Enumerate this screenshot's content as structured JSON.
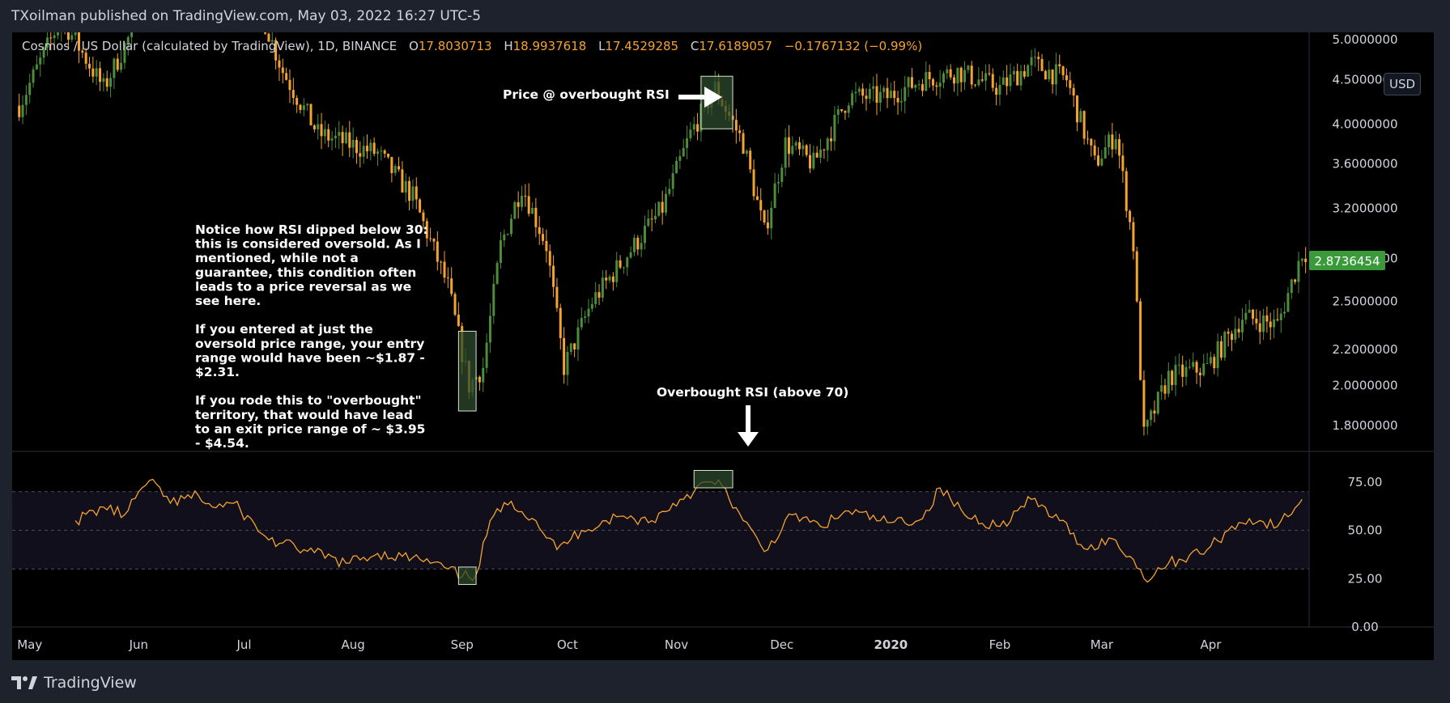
{
  "header": {
    "published_line": "TXoilman published on TradingView.com, May 03, 2022 16:27 UTC-5"
  },
  "footer": {
    "logo_text": "TradingView"
  },
  "legend": {
    "symbol": "Cosmos / US Dollar (calculated by TradingView), 1D, BINANCE",
    "o_label": "O",
    "o_value": "17.8030713",
    "h_label": "H",
    "h_value": "18.9937618",
    "l_label": "L",
    "l_value": "17.4529285",
    "c_label": "C",
    "c_value": "17.6189057",
    "change": "−0.1767132 (−0.99%)"
  },
  "currency_button": "USD",
  "last_price_label": "2.8736454",
  "colors": {
    "up": "#4c8c3a",
    "down": "#f5a32f",
    "rsi_line": "#f5a32f",
    "background": "#000000",
    "frame": "#1e222d",
    "last_price_badge": "#3a9a3a",
    "rsi_band": "#120f1c",
    "highlight_fill": "#2c4a2c"
  },
  "annotations": {
    "price_overbought": "Price @ overbought RSI",
    "rsi_overbought": "Overbought RSI (above 70)",
    "note_lines": [
      "Notice how RSI dipped below 30:",
      "this is considered oversold. As I",
      "mentioned, while not a",
      "guarantee, this condition often",
      "leads to a price reversal as we",
      "see here.",
      "",
      "If you entered at just the",
      "oversold price range, your entry",
      "range would have been ~$1.87 -",
      "$2.31.",
      "",
      "If you rode this to \"overbought\"",
      "territory, that would have lead",
      "to an exit price range of ~ $3.95",
      "- $4.54."
    ]
  },
  "chart_data": [
    {
      "type": "candlestick",
      "title": "Cosmos / US Dollar (calculated by TradingView), 1D, BINANCE",
      "y_scale": "log",
      "ylim": [
        1.68,
        5.1
      ],
      "y_ticks": [
        5.0,
        4.5,
        4.0,
        3.6,
        3.2,
        2.8,
        2.5,
        2.2,
        2.0,
        1.8
      ],
      "y_tick_labels": [
        "5.0000000",
        "4.5000000",
        "4.0000000",
        "3.6000000",
        "3.2000000",
        "2.8000000",
        "2.5000000",
        "2.2000000",
        "2.0000000",
        "1.8000000"
      ],
      "x_range": [
        "2019-04-26",
        "2020-04-29"
      ],
      "x_ticks": [
        {
          "date": "2019-05-01",
          "label": "May"
        },
        {
          "date": "2019-06-01",
          "label": "Jun"
        },
        {
          "date": "2019-07-01",
          "label": "Jul"
        },
        {
          "date": "2019-08-01",
          "label": "Aug"
        },
        {
          "date": "2019-09-01",
          "label": "Sep"
        },
        {
          "date": "2019-10-01",
          "label": "Oct"
        },
        {
          "date": "2019-11-01",
          "label": "Nov"
        },
        {
          "date": "2019-12-01",
          "label": "Dec"
        },
        {
          "date": "2020-01-01",
          "label": "2020"
        },
        {
          "date": "2020-02-01",
          "label": "Feb"
        },
        {
          "date": "2020-03-01",
          "label": "Mar"
        },
        {
          "date": "2020-04-01",
          "label": "Apr"
        }
      ],
      "close_path": [
        {
          "date": "2019-04-28",
          "close": 4.2
        },
        {
          "date": "2019-05-10",
          "close": 5.3
        },
        {
          "date": "2019-05-22",
          "close": 4.4
        },
        {
          "date": "2019-06-05",
          "close": 5.7
        },
        {
          "date": "2019-06-20",
          "close": 5.6
        },
        {
          "date": "2019-07-05",
          "close": 5.5
        },
        {
          "date": "2019-07-12",
          "close": 4.6
        },
        {
          "date": "2019-07-22",
          "close": 3.9
        },
        {
          "date": "2019-08-08",
          "close": 3.7
        },
        {
          "date": "2019-08-18",
          "close": 3.3
        },
        {
          "date": "2019-08-28",
          "close": 2.6
        },
        {
          "date": "2019-09-03",
          "close": 2.0
        },
        {
          "date": "2019-09-07",
          "close": 2.1
        },
        {
          "date": "2019-09-12",
          "close": 2.9
        },
        {
          "date": "2019-09-18",
          "close": 3.4
        },
        {
          "date": "2019-09-25",
          "close": 2.9
        },
        {
          "date": "2019-09-30",
          "close": 2.1
        },
        {
          "date": "2019-10-08",
          "close": 2.5
        },
        {
          "date": "2019-10-20",
          "close": 2.9
        },
        {
          "date": "2019-10-28",
          "close": 3.2
        },
        {
          "date": "2019-11-05",
          "close": 3.9
        },
        {
          "date": "2019-11-12",
          "close": 4.4
        },
        {
          "date": "2019-11-20",
          "close": 3.8
        },
        {
          "date": "2019-11-26",
          "close": 3.0
        },
        {
          "date": "2019-12-02",
          "close": 3.8
        },
        {
          "date": "2019-12-10",
          "close": 3.6
        },
        {
          "date": "2019-12-20",
          "close": 4.3
        },
        {
          "date": "2019-12-31",
          "close": 4.3
        },
        {
          "date": "2020-01-10",
          "close": 4.5
        },
        {
          "date": "2020-01-20",
          "close": 4.6
        },
        {
          "date": "2020-02-01",
          "close": 4.4
        },
        {
          "date": "2020-02-10",
          "close": 4.7
        },
        {
          "date": "2020-02-20",
          "close": 4.5
        },
        {
          "date": "2020-02-28",
          "close": 3.6
        },
        {
          "date": "2020-03-05",
          "close": 3.9
        },
        {
          "date": "2020-03-10",
          "close": 2.9
        },
        {
          "date": "2020-03-13",
          "close": 1.75
        },
        {
          "date": "2020-03-20",
          "close": 2.05
        },
        {
          "date": "2020-03-31",
          "close": 2.1
        },
        {
          "date": "2020-04-10",
          "close": 2.4
        },
        {
          "date": "2020-04-20",
          "close": 2.35
        },
        {
          "date": "2020-04-27",
          "close": 2.85
        }
      ],
      "highlight_ranges": [
        {
          "label": "oversold price range",
          "from": "2019-08-31",
          "to": "2019-09-05",
          "low": 1.87,
          "high": 2.31
        },
        {
          "label": "overbought price range",
          "from": "2019-11-08",
          "to": "2019-11-17",
          "low": 3.95,
          "high": 4.54
        }
      ],
      "last_price": 2.8736454
    },
    {
      "type": "line",
      "title": "RSI",
      "ylim": [
        0,
        90
      ],
      "y_ticks": [
        75,
        50,
        25,
        0
      ],
      "y_tick_labels": [
        "75.00",
        "50.00",
        "25.00",
        "0.00"
      ],
      "band": [
        30,
        70
      ],
      "x_range": [
        "2019-04-26",
        "2020-04-29"
      ],
      "points": [
        {
          "date": "2019-05-14",
          "rsi": 55
        },
        {
          "date": "2019-05-22",
          "rsi": 62
        },
        {
          "date": "2019-05-28",
          "rsi": 58
        },
        {
          "date": "2019-06-02",
          "rsi": 72
        },
        {
          "date": "2019-06-06",
          "rsi": 74
        },
        {
          "date": "2019-06-10",
          "rsi": 64
        },
        {
          "date": "2019-06-18",
          "rsi": 68
        },
        {
          "date": "2019-06-22",
          "rsi": 62
        },
        {
          "date": "2019-06-28",
          "rsi": 64
        },
        {
          "date": "2019-07-08",
          "rsi": 45
        },
        {
          "date": "2019-07-18",
          "rsi": 40
        },
        {
          "date": "2019-07-30",
          "rsi": 33
        },
        {
          "date": "2019-08-08",
          "rsi": 38
        },
        {
          "date": "2019-08-20",
          "rsi": 35
        },
        {
          "date": "2019-08-28",
          "rsi": 30
        },
        {
          "date": "2019-09-01",
          "rsi": 26
        },
        {
          "date": "2019-09-05",
          "rsi": 27
        },
        {
          "date": "2019-09-09",
          "rsi": 55
        },
        {
          "date": "2019-09-15",
          "rsi": 65
        },
        {
          "date": "2019-09-22",
          "rsi": 55
        },
        {
          "date": "2019-09-28",
          "rsi": 40
        },
        {
          "date": "2019-10-05",
          "rsi": 50
        },
        {
          "date": "2019-10-15",
          "rsi": 57
        },
        {
          "date": "2019-10-25",
          "rsi": 55
        },
        {
          "date": "2019-11-02",
          "rsi": 66
        },
        {
          "date": "2019-11-10",
          "rsi": 75
        },
        {
          "date": "2019-11-14",
          "rsi": 73
        },
        {
          "date": "2019-11-20",
          "rsi": 55
        },
        {
          "date": "2019-11-26",
          "rsi": 39
        },
        {
          "date": "2019-12-04",
          "rsi": 58
        },
        {
          "date": "2019-12-12",
          "rsi": 52
        },
        {
          "date": "2019-12-20",
          "rsi": 60
        },
        {
          "date": "2019-12-31",
          "rsi": 54
        },
        {
          "date": "2020-01-10",
          "rsi": 56
        },
        {
          "date": "2020-01-15",
          "rsi": 72
        },
        {
          "date": "2020-01-22",
          "rsi": 58
        },
        {
          "date": "2020-02-01",
          "rsi": 52
        },
        {
          "date": "2020-02-10",
          "rsi": 66
        },
        {
          "date": "2020-02-18",
          "rsi": 55
        },
        {
          "date": "2020-02-26",
          "rsi": 40
        },
        {
          "date": "2020-03-03",
          "rsi": 46
        },
        {
          "date": "2020-03-10",
          "rsi": 35
        },
        {
          "date": "2020-03-13",
          "rsi": 25
        },
        {
          "date": "2020-03-20",
          "rsi": 33
        },
        {
          "date": "2020-03-31",
          "rsi": 40
        },
        {
          "date": "2020-04-06",
          "rsi": 50
        },
        {
          "date": "2020-04-12",
          "rsi": 56
        },
        {
          "date": "2020-04-20",
          "rsi": 52
        },
        {
          "date": "2020-04-27",
          "rsi": 66
        }
      ],
      "highlight_ranges": [
        {
          "label": "oversold",
          "from": "2019-08-31",
          "to": "2019-09-05"
        },
        {
          "label": "overbought",
          "from": "2019-11-06",
          "to": "2019-11-17"
        }
      ]
    }
  ]
}
